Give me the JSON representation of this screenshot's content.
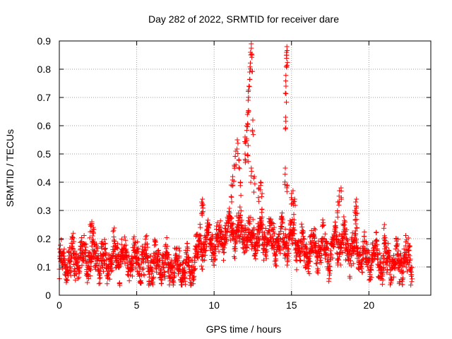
{
  "chart_data": {
    "type": "scatter",
    "title": "Day 282 of 2022, SRMTID for receiver dare",
    "xlabel": "GPS time / hours",
    "ylabel": "SRMTID / TECUs",
    "xlim": [
      0,
      24
    ],
    "ylim": [
      0,
      0.9
    ],
    "x_ticks": [
      0,
      5,
      10,
      15,
      20
    ],
    "x_tick_labels": [
      "0",
      "5",
      "10",
      "15",
      "20"
    ],
    "y_ticks": [
      0,
      0.1,
      0.2,
      0.3,
      0.4,
      0.5,
      0.6,
      0.7,
      0.8,
      0.9
    ],
    "y_tick_labels": [
      "0",
      "0.1",
      "0.2",
      "0.3",
      "0.4",
      "0.5",
      "0.6",
      "0.7",
      "0.8",
      "0.9"
    ],
    "grid": true,
    "marker": "+",
    "series": [
      {
        "name": "SRMTID",
        "color": "#ff0000",
        "baseline_profile": {
          "x": [
            0,
            1,
            2,
            3,
            4,
            5,
            6,
            7,
            8,
            8.5,
            9,
            9.5,
            10,
            10.5,
            11,
            11.5,
            12,
            12.5,
            13,
            13.5,
            14,
            14.5,
            15,
            15.5,
            16,
            16.5,
            17,
            17.5,
            18,
            18.5,
            19,
            19.5,
            20,
            20.5,
            21,
            21.5,
            22,
            22.8
          ],
          "y": [
            0.1,
            0.13,
            0.14,
            0.12,
            0.14,
            0.12,
            0.11,
            0.11,
            0.1,
            0.09,
            0.16,
            0.2,
            0.18,
            0.2,
            0.24,
            0.22,
            0.21,
            0.2,
            0.21,
            0.21,
            0.19,
            0.2,
            0.2,
            0.17,
            0.15,
            0.16,
            0.16,
            0.15,
            0.2,
            0.18,
            0.16,
            0.15,
            0.13,
            0.13,
            0.12,
            0.11,
            0.12,
            0.12
          ]
        },
        "scatter_spread": 0.05,
        "sample_spacing_hours": 0.01,
        "peaks": [
          {
            "x": [
              11.1,
              11.2,
              11.3,
              11.4,
              11.5,
              11.6,
              11.7
            ],
            "y": [
              0.39,
              0.42,
              0.46,
              0.51,
              0.55,
              0.48,
              0.4
            ]
          },
          {
            "x": [
              12.0,
              12.1,
              12.15,
              12.2,
              12.25,
              12.3,
              12.35,
              12.4,
              12.45,
              12.5
            ],
            "y": [
              0.56,
              0.6,
              0.64,
              0.69,
              0.74,
              0.79,
              0.86,
              0.89,
              0.85,
              0.62
            ]
          },
          {
            "x": [
              12.0,
              12.2,
              12.4,
              12.6
            ],
            "y": [
              0.5,
              0.53,
              0.45,
              0.42
            ]
          },
          {
            "x": [
              12.9,
              13.0,
              13.1
            ],
            "y": [
              0.38,
              0.4,
              0.36
            ]
          },
          {
            "x": [
              14.6,
              14.62,
              14.64,
              14.66,
              14.68,
              14.7,
              14.72
            ],
            "y": [
              0.45,
              0.63,
              0.74,
              0.81,
              0.86,
              0.88,
              0.39
            ]
          },
          {
            "x": [
              15.0,
              15.1,
              15.2
            ],
            "y": [
              0.36,
              0.37,
              0.34
            ]
          },
          {
            "x": [
              18.0,
              18.1,
              18.2
            ],
            "y": [
              0.33,
              0.37,
              0.38
            ]
          },
          {
            "x": [
              19.1,
              19.15,
              19.2,
              19.25
            ],
            "y": [
              0.3,
              0.33,
              0.34,
              0.29
            ]
          },
          {
            "x": [
              9.2,
              9.25,
              9.3
            ],
            "y": [
              0.33,
              0.34,
              0.32
            ]
          },
          {
            "x": [
              2.0,
              2.1,
              2.2
            ],
            "y": [
              0.25,
              0.26,
              0.24
            ]
          },
          {
            "x": [
              21.0
            ],
            "y": [
              0.25
            ]
          }
        ]
      }
    ]
  }
}
